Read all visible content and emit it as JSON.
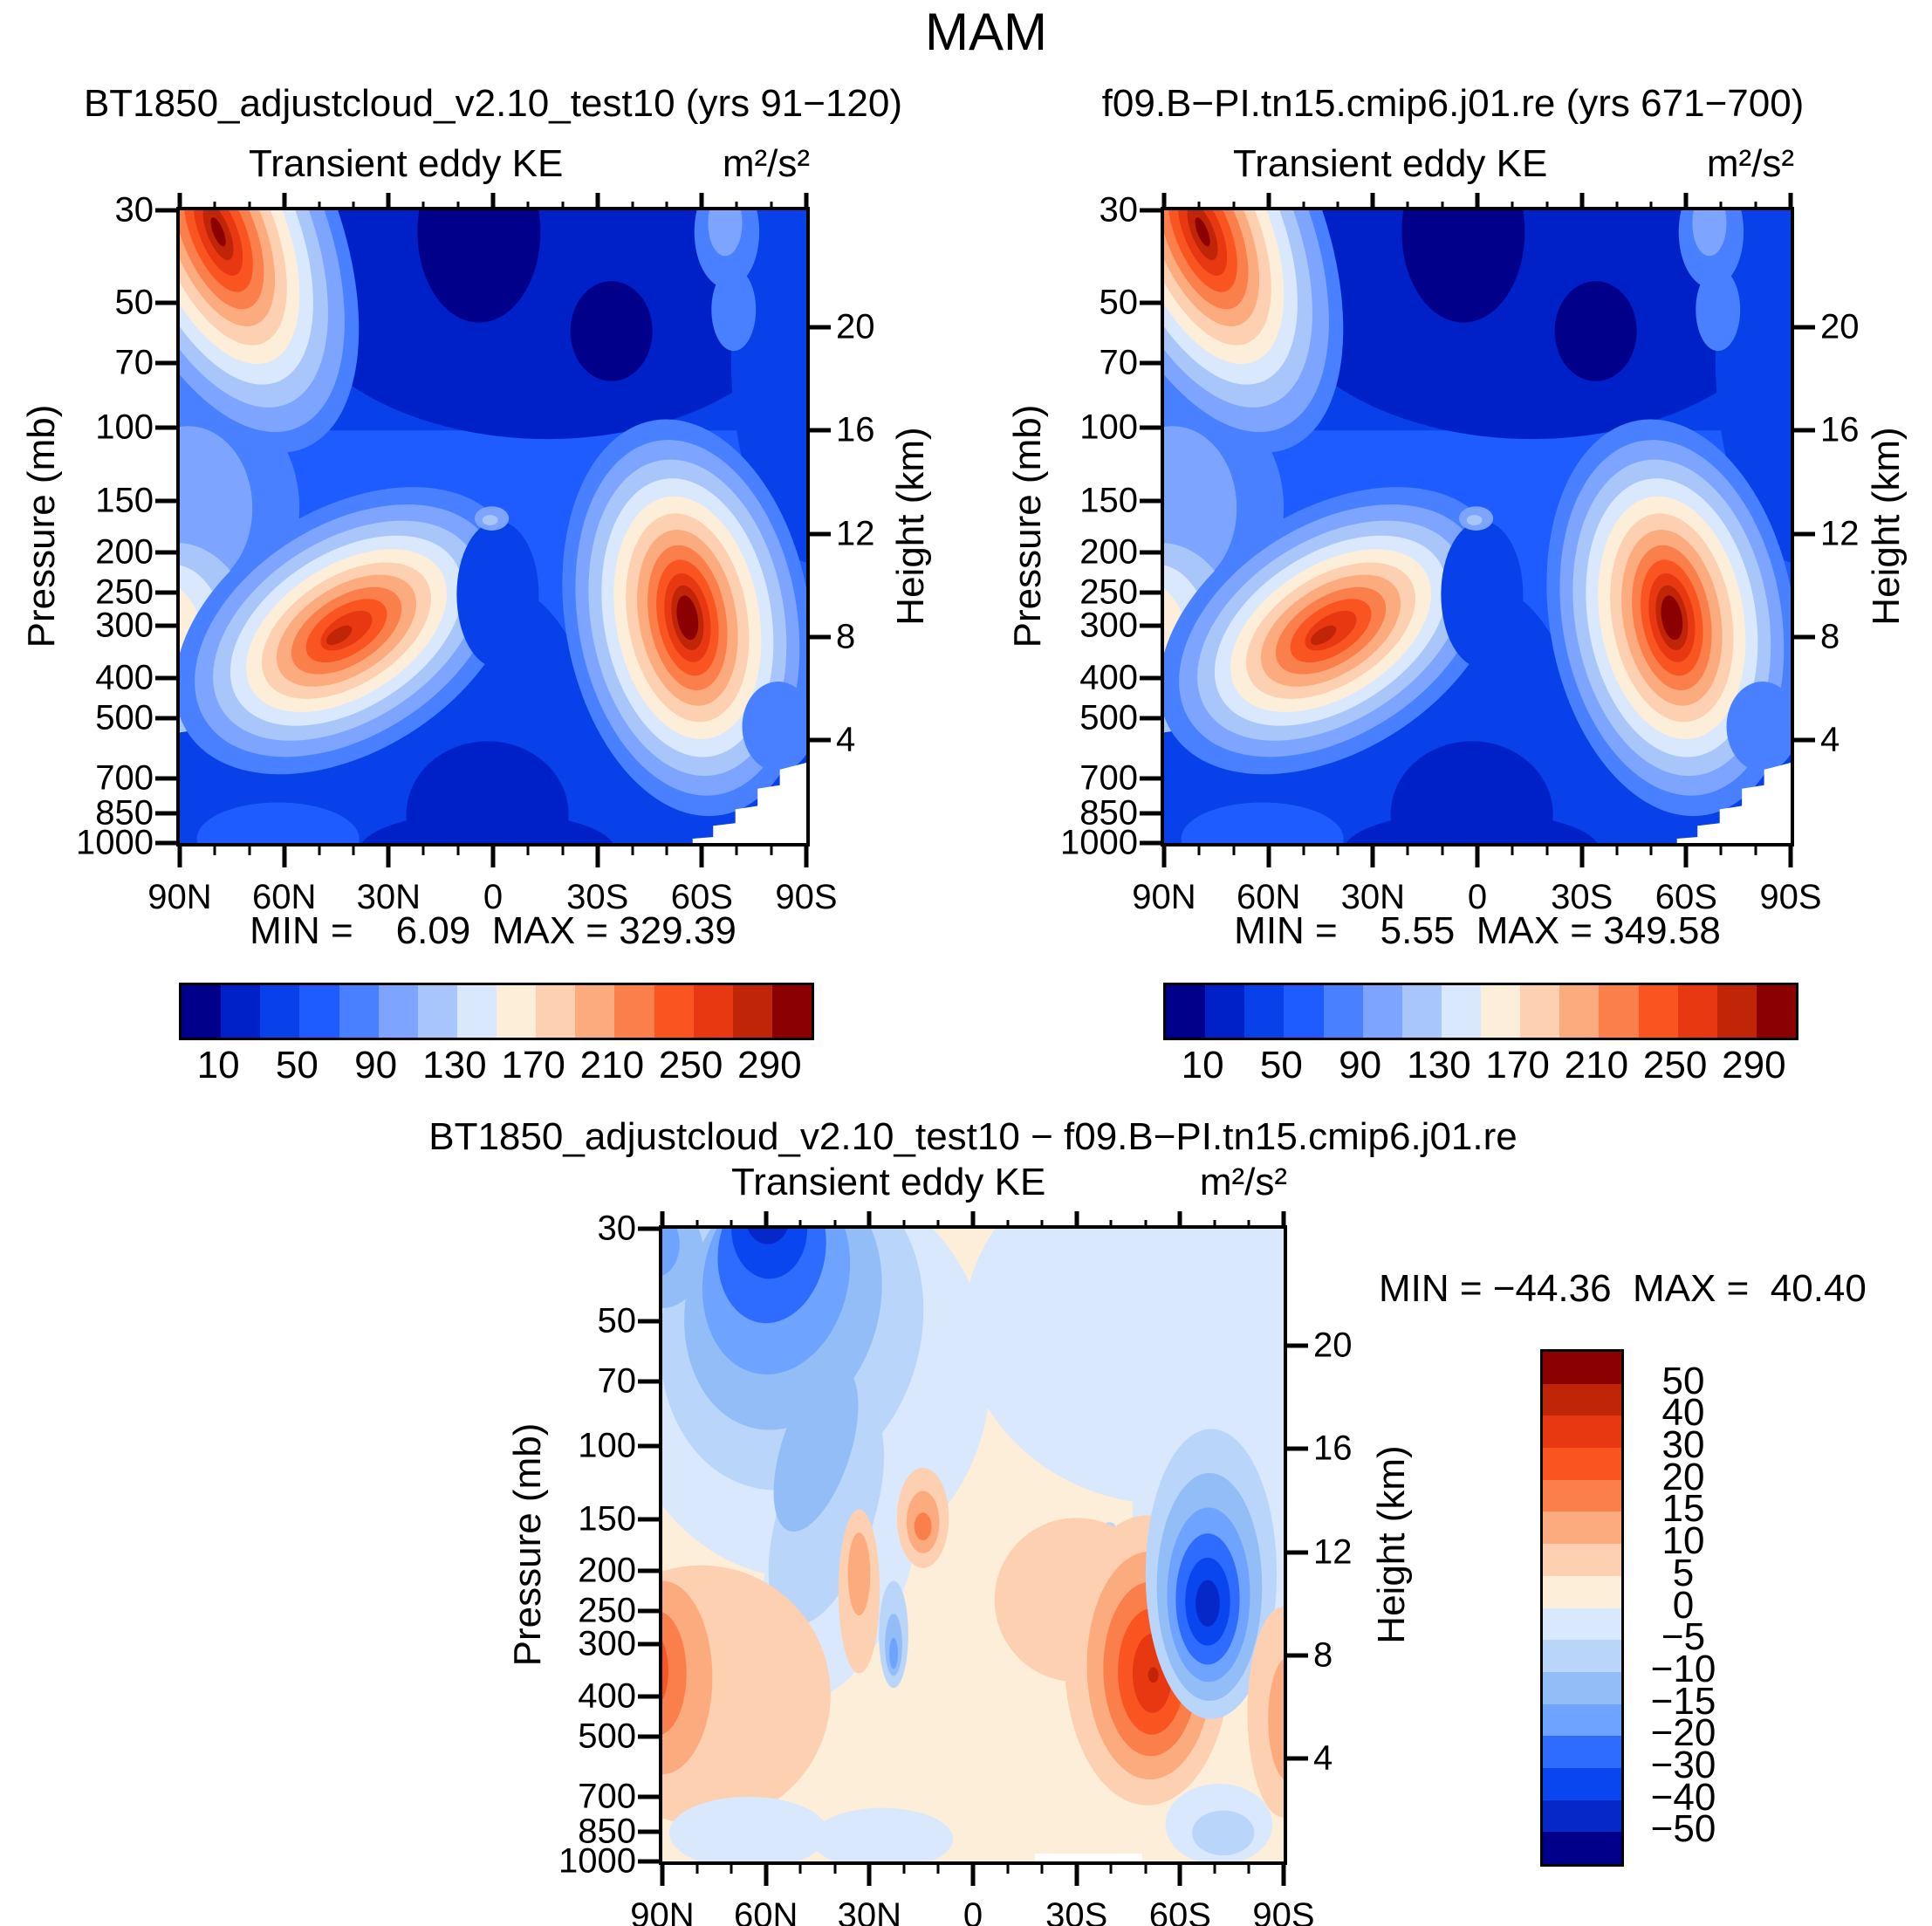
{
  "title": "MAM",
  "panels": {
    "left": {
      "header": "BT1850_adjustcloud_v2.10_test10 (yrs 91−120)",
      "subtitle": "Transient eddy KE",
      "units": "m²/s²",
      "minmax": "MIN =    6.09  MAX = 329.39"
    },
    "right": {
      "header": "f09.B−PI.tn15.cmip6.j01.re (yrs 671−700)",
      "subtitle": "Transient eddy KE",
      "units": "m²/s²",
      "minmax": "MIN =    5.55  MAX = 349.58"
    },
    "diff": {
      "header": "BT1850_adjustcloud_v2.10_test10 − f09.B−PI.tn15.cmip6.j01.re",
      "subtitle": "Transient eddy KE",
      "units": "m²/s²",
      "minmax": "MIN = −44.36  MAX =  40.40"
    }
  },
  "axes": {
    "pressure_label": "Pressure (mb)",
    "height_label": "Height (km)",
    "pressure_ticks": [
      30,
      50,
      70,
      100,
      150,
      200,
      250,
      300,
      400,
      500,
      700,
      850,
      1000
    ],
    "height_ticks": [
      20,
      16,
      12,
      8,
      4
    ],
    "lat_ticks": [
      "90N",
      "60N",
      "30N",
      "0",
      "30S",
      "60S",
      "90S"
    ]
  },
  "colorbar_main": {
    "colors": [
      "#00008b",
      "#0021c8",
      "#0840ea",
      "#1e5cff",
      "#4880ff",
      "#7da4ff",
      "#a8c6fa",
      "#d9e8fc",
      "#fdeeda",
      "#fcd0b0",
      "#fcab7e",
      "#fb7f4b",
      "#fa5420",
      "#e83812",
      "#c02508",
      "#8b0000"
    ],
    "labels": [
      "10",
      "50",
      "90",
      "130",
      "170",
      "210",
      "250",
      "290"
    ]
  },
  "colorbar_diff": {
    "colors": [
      "#8b0000",
      "#c02508",
      "#e83812",
      "#fa5420",
      "#fb7f4b",
      "#fcab7e",
      "#fcd0b0",
      "#fdeeda",
      "#d9e8fc",
      "#b9d5fa",
      "#93bdf7",
      "#6ea3ff",
      "#2e6bff",
      "#0a46f0",
      "#0628c8",
      "#00008b"
    ],
    "labels": [
      "50",
      "40",
      "30",
      "20",
      "15",
      "10",
      "5",
      "0",
      "−5",
      "−10",
      "−15",
      "−20",
      "−30",
      "−40",
      "−50"
    ]
  },
  "chart_data": [
    {
      "type": "heatmap",
      "title": "BT1850_adjustcloud_v2.10_test10 (yrs 91−120)",
      "subtitle": "Transient eddy KE",
      "units": "m²/s²",
      "x_ticks": [
        "90N",
        "60N",
        "30N",
        "0",
        "30S",
        "60S",
        "90S"
      ],
      "ylabel_left": "Pressure (mb)",
      "y_ticks_left": [
        30,
        50,
        70,
        100,
        150,
        200,
        250,
        300,
        400,
        500,
        700,
        850,
        1000
      ],
      "ylabel_right": "Height (km)",
      "y_ticks_right": [
        20,
        16,
        12,
        8,
        4
      ],
      "y_scale": "log pressure, 30 mb at top to 1000 mb at bottom",
      "min": 6.09,
      "max": 329.39,
      "contour_levels": [
        10,
        30,
        50,
        70,
        90,
        110,
        130,
        150,
        170,
        190,
        210,
        230,
        250,
        270,
        290
      ],
      "legend_position": "horizontal labelbar below panel",
      "features": [
        "polar stratospheric maximum >290 near 75-90N at 30-50 mb",
        "NH midlatitude storm-track maximum ~250-290 centered near 45N at 250-300 mb",
        "SH midlatitude maximum ~310-330 centered near 50S at 250-300 mb",
        "minima <30 in tropical stratosphere and in lower troposphere",
        "white masked terrain wedge near 70-90S below ~700 mb"
      ]
    },
    {
      "type": "heatmap",
      "title": "f09.B−PI.tn15.cmip6.j01.re (yrs 671−700)",
      "subtitle": "Transient eddy KE",
      "units": "m²/s²",
      "x_ticks": [
        "90N",
        "60N",
        "30N",
        "0",
        "30S",
        "60S",
        "90S"
      ],
      "ylabel_left": "Pressure (mb)",
      "y_ticks_left": [
        30,
        50,
        70,
        100,
        150,
        200,
        250,
        300,
        400,
        500,
        700,
        850,
        1000
      ],
      "ylabel_right": "Height (km)",
      "y_ticks_right": [
        20,
        16,
        12,
        8,
        4
      ],
      "y_scale": "log pressure, 30 mb at top to 1000 mb at bottom",
      "min": 5.55,
      "max": 349.58,
      "contour_levels": [
        10,
        30,
        50,
        70,
        90,
        110,
        130,
        150,
        170,
        190,
        210,
        230,
        250,
        270,
        290
      ],
      "legend_position": "horizontal labelbar below panel",
      "features": [
        "polar stratospheric maximum >290 near 75-90N at 30-50 mb",
        "NH midlatitude maximum ~250-290 centered near 45N at 200-300 mb",
        "SH midlatitude maximum ~330-350 centered near 50S at 250-300 mb",
        "minima <30 in tropical stratosphere and in lower troposphere",
        "white masked terrain wedge near 70-90S below ~700 mb"
      ]
    },
    {
      "type": "heatmap",
      "title": "BT1850_adjustcloud_v2.10_test10 − f09.B−PI.tn15.cmip6.j01.re",
      "subtitle": "Transient eddy KE",
      "units": "m²/s²",
      "x_ticks": [
        "90N",
        "60N",
        "30N",
        "0",
        "30S",
        "60S",
        "90S"
      ],
      "ylabel_left": "Pressure (mb)",
      "y_ticks_left": [
        30,
        50,
        70,
        100,
        150,
        200,
        250,
        300,
        400,
        500,
        700,
        850,
        1000
      ],
      "ylabel_right": "Height (km)",
      "y_ticks_right": [
        20,
        16,
        12,
        8,
        4
      ],
      "y_scale": "log pressure, 30 mb at top to 1000 mb at bottom",
      "min": -44.36,
      "max": 40.4,
      "contour_levels": [
        -50,
        -40,
        -30,
        -20,
        -15,
        -10,
        -5,
        0,
        5,
        10,
        15,
        20,
        30,
        40,
        50
      ],
      "legend_position": "vertical labelbar at right",
      "features": [
        "negative difference to ~−44 centered near 55-60S at 150-250 mb",
        "positive difference to ~+40 centered near 40S at 250-350 mb",
        "negative region near 50-70N in stratosphere (30-100 mb)",
        "positive patch at 90N edge near 300-500 mb",
        "weak positive (0-5) background over much of the domain"
      ]
    }
  ]
}
